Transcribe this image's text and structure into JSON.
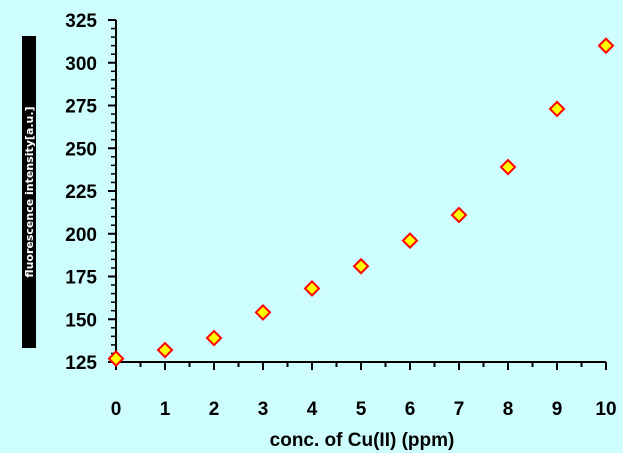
{
  "chart_data": {
    "type": "scatter",
    "xlabel": "conc. of Cu(II) (ppm)",
    "ylabel": "fluorescence intensity[a.u.]",
    "xlim": [
      0,
      10
    ],
    "ylim": [
      125,
      325
    ],
    "x_ticks": [
      "0",
      "1",
      "2",
      "3",
      "4",
      "5",
      "6",
      "7",
      "8",
      "9",
      "10"
    ],
    "y_ticks": [
      "125",
      "150",
      "175",
      "200",
      "225",
      "250",
      "275",
      "300",
      "325"
    ],
    "grid": false,
    "legend": "none",
    "marker": "diamond",
    "colors": {
      "marker_fill": "#ffff00",
      "marker_edge": "#ff0000",
      "background": "#cdfdfd"
    },
    "points": [
      {
        "x": 0,
        "y": 127
      },
      {
        "x": 1,
        "y": 132
      },
      {
        "x": 2,
        "y": 139
      },
      {
        "x": 3,
        "y": 154
      },
      {
        "x": 4,
        "y": 168
      },
      {
        "x": 5,
        "y": 181
      },
      {
        "x": 6,
        "y": 196
      },
      {
        "x": 7,
        "y": 211
      },
      {
        "x": 8,
        "y": 239
      },
      {
        "x": 9,
        "y": 273
      },
      {
        "x": 10,
        "y": 310
      }
    ]
  }
}
